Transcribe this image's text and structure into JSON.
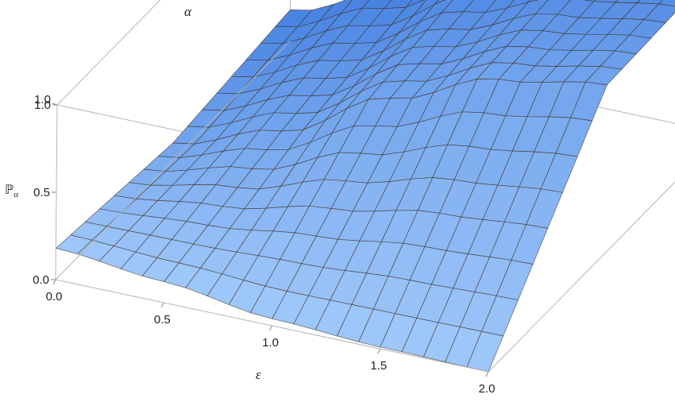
{
  "chart_data": {
    "type": "surface3d",
    "axes": {
      "x": {
        "label": "ε",
        "range": [
          0,
          2
        ],
        "ticks": [
          "0.0",
          "0.5",
          "1.0",
          "1.5",
          "2.0"
        ]
      },
      "y": {
        "label": "α",
        "range": [
          0,
          1
        ],
        "ticks": [
          "0.0",
          "0.5",
          "1.0"
        ]
      },
      "z": {
        "label": "ℙ",
        "label_subscript": "α",
        "range": [
          0,
          1
        ],
        "ticks": [
          "0.0",
          "0.5",
          "1.0"
        ]
      }
    },
    "surface": {
      "description_values": "P_alpha at grid points (eps, alpha)",
      "eps_grid": [
        0,
        0.5,
        1.0,
        1.5,
        2.0
      ],
      "alpha_grid": [
        0,
        0.5,
        1.0
      ],
      "values": [
        [
          0.18,
          0.42,
          0.73,
          0.92,
          0.99
        ],
        [
          0.1,
          0.3,
          0.62,
          0.86,
          0.96
        ],
        [
          0.18,
          0.12,
          0.04,
          0.01,
          0.0
        ]
      ]
    },
    "colors": {
      "top": "#f59a20",
      "top_light": "#fcc33a",
      "bottom": "#4f8fe6",
      "bottom_light": "#8fc2f7"
    },
    "box": true,
    "grid": false
  }
}
